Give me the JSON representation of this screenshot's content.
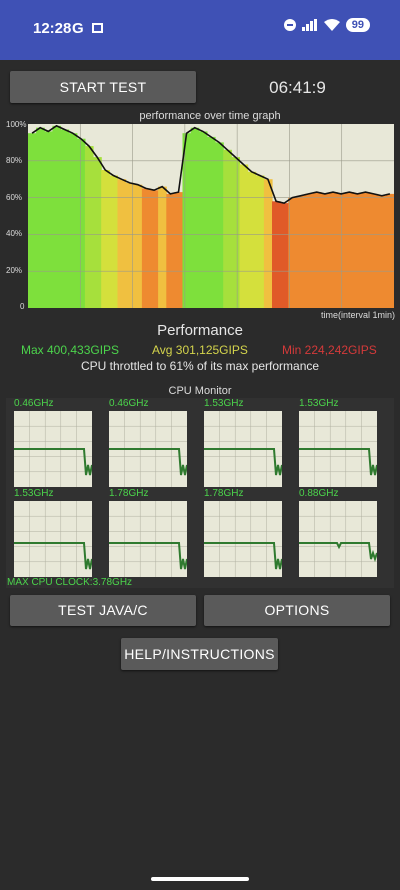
{
  "status_bar": {
    "time": "12:28",
    "g_label": "G",
    "battery": "99"
  },
  "header": {
    "start_label": "START TEST",
    "timer": "06:41:9"
  },
  "graph": {
    "title": "performance over time graph",
    "y_labels": [
      "100%",
      "80%",
      "60%",
      "40%",
      "20%",
      "0"
    ],
    "x_label": "time(interval 1min)"
  },
  "performance": {
    "title": "Performance",
    "max": "Max 400,433GIPS",
    "avg": "Avg 301,125GIPS",
    "min": "Min 224,242GIPS",
    "throttle": "CPU throttled to 61% of its max performance"
  },
  "cpu_monitor": {
    "title": "CPU Monitor",
    "cores": [
      {
        "freq": "0.46GHz"
      },
      {
        "freq": "0.46GHz"
      },
      {
        "freq": "1.53GHz"
      },
      {
        "freq": "1.53GHz"
      },
      {
        "freq": "1.53GHz"
      },
      {
        "freq": "1.78GHz"
      },
      {
        "freq": "1.78GHz"
      },
      {
        "freq": "0.88GHz"
      }
    ],
    "max_clock": "MAX CPU CLOCK:3.78GHz"
  },
  "buttons": {
    "java": "TEST JAVA/C",
    "options": "OPTIONS",
    "help": "HELP/INSTRUCTIONS"
  },
  "colors": {
    "max": "#4cd44c",
    "avg": "#d4d44c",
    "min": "#d43a3a",
    "accent": "#3f51b5"
  },
  "chart_data": {
    "type": "line",
    "title": "performance over time graph",
    "xlabel": "time(interval 1min)",
    "ylabel": "",
    "ylim": [
      0,
      100
    ],
    "series": [
      {
        "values": [
          95,
          98,
          96,
          99,
          97,
          95,
          92,
          88,
          82,
          75,
          72,
          70,
          68,
          67,
          65,
          64,
          66,
          62,
          63,
          95,
          98,
          96,
          93,
          90,
          86,
          82,
          78,
          74,
          72,
          70,
          58,
          57,
          60,
          61,
          62,
          63,
          62,
          63,
          62,
          63,
          62,
          63,
          62,
          61,
          62
        ]
      }
    ]
  }
}
